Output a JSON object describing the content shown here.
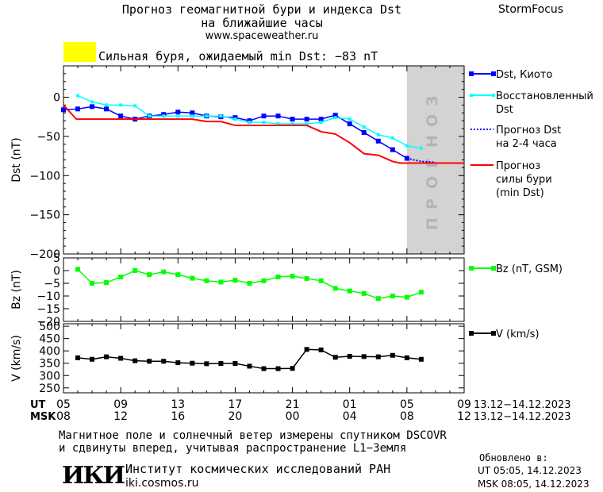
{
  "header": {
    "title_line1": "Прогноз геомагнитной бури и индекса Dst",
    "title_line2": "на ближайшие часы",
    "url": "www.spaceweather.ru",
    "brand": "StormFocus"
  },
  "storm_banner": {
    "text": "Сильная буря, ожидаемый min Dst: −83 nT",
    "color": "#ffff00"
  },
  "forecast_zone_label": "ПРОГНОЗ",
  "colors": {
    "dst_kyoto": "#0000ff",
    "dst_restored": "#00ffff",
    "dst_forecast": "#0000ff",
    "storm_forecast": "#ff0000",
    "bz": "#00ff00",
    "v": "#000000",
    "forecast_zone": "#d3d3d3"
  },
  "chart_data": [
    {
      "type": "line",
      "ylabel": "Dst (nT)",
      "ylim": [
        -200,
        40
      ],
      "yticks": [
        0,
        -50,
        -100,
        -150,
        -200
      ],
      "xlim": [
        5,
        33
      ],
      "series": [
        {
          "name": "Dst, Киото",
          "x": [
            5,
            6,
            7,
            8,
            9,
            10,
            11,
            12,
            13,
            14,
            15,
            16,
            17,
            18,
            19,
            20,
            21,
            22,
            23,
            24,
            25,
            26,
            27,
            28,
            29
          ],
          "values": [
            -16,
            -15,
            -12,
            -15,
            -24,
            -28,
            -24,
            -22,
            -19,
            -20,
            -24,
            -25,
            -26,
            -30,
            -24,
            -24,
            -28,
            -28,
            -28,
            -23,
            -34,
            -45,
            -56,
            -67,
            -78
          ]
        },
        {
          "name": "Восстановленный Dst",
          "x": [
            6,
            7,
            8,
            9,
            10,
            11,
            12,
            13,
            14,
            15,
            16,
            17,
            18,
            19,
            20,
            21,
            22,
            23,
            24,
            25,
            26,
            27,
            28,
            29,
            30
          ],
          "values": [
            2,
            -6,
            -10,
            -10,
            -11,
            -24,
            -24,
            -24,
            -24,
            -24,
            -24,
            -28,
            -32,
            -32,
            -34,
            -34,
            -34,
            -32,
            -26,
            -28,
            -38,
            -48,
            -52,
            -62,
            -65
          ]
        },
        {
          "name": "Прогноз Dst на 2-4 часа",
          "x": [
            29,
            30,
            31
          ],
          "values": [
            -78,
            -82,
            -83
          ]
        },
        {
          "name": "Прогноз силы бури (min Dst)",
          "x": [
            5,
            5.9,
            7,
            8,
            9,
            10,
            11,
            12,
            13,
            14,
            15,
            16,
            17,
            18,
            19,
            20,
            21,
            22,
            23,
            24,
            25,
            26,
            27,
            28,
            28.5,
            29,
            30,
            31,
            32,
            33
          ],
          "values": [
            -10,
            -28,
            -28,
            -28,
            -28,
            -28,
            -28,
            -28,
            -28,
            -28,
            -31,
            -31,
            -36,
            -36,
            -36,
            -36,
            -36,
            -36,
            -44,
            -47,
            -58,
            -72,
            -74,
            -82,
            -84,
            -84,
            -84,
            -84,
            -84,
            -84
          ]
        }
      ]
    },
    {
      "type": "line",
      "ylabel": "Bz (nT)",
      "ylim": [
        -20,
        5
      ],
      "yticks": [
        5,
        0,
        -5,
        -10,
        -15,
        -20
      ],
      "xlim": [
        5,
        33
      ],
      "series": [
        {
          "name": "Bz (nT, GSM)",
          "x": [
            6,
            7,
            8,
            9,
            10,
            11,
            12,
            13,
            14,
            15,
            16,
            17,
            18,
            19,
            20,
            21,
            22,
            23,
            24,
            25,
            26,
            27,
            28,
            29,
            30
          ],
          "values": [
            0.5,
            -5,
            -4.7,
            -2.5,
            0,
            -1.6,
            -0.5,
            -1.6,
            -3,
            -4,
            -4.5,
            -3.8,
            -5,
            -4,
            -2.5,
            -2.2,
            -3.1,
            -4,
            -7,
            -8,
            -9,
            -11,
            -10,
            -10.5,
            -8.5
          ]
        }
      ]
    },
    {
      "type": "line",
      "ylabel": "V (km/s)",
      "ylim": [
        230,
        510
      ],
      "yticks": [
        500,
        450,
        400,
        350,
        300,
        250
      ],
      "xlim": [
        5,
        33
      ],
      "series": [
        {
          "name": "V (km/s)",
          "x": [
            6,
            7,
            8,
            9,
            10,
            11,
            12,
            13,
            14,
            15,
            16,
            17,
            18,
            19,
            20,
            21,
            22,
            23,
            24,
            25,
            26,
            27,
            28,
            29,
            30
          ],
          "values": [
            372,
            366,
            376,
            370,
            360,
            358,
            358,
            352,
            350,
            348,
            349,
            349,
            338,
            328,
            328,
            329,
            406,
            404,
            374,
            378,
            377,
            376,
            382,
            372,
            366
          ]
        }
      ]
    }
  ],
  "time_axis": {
    "ut_label": "UT",
    "msk_label": "MSK",
    "ut_ticks": [
      "05",
      "09",
      "13",
      "17",
      "21",
      "01",
      "05",
      "09"
    ],
    "msk_ticks": [
      "08",
      "12",
      "16",
      "20",
      "00",
      "04",
      "08",
      "12"
    ],
    "ut_range": "13.12−14.12.2023",
    "msk_range": "13.12−14.12.2023"
  },
  "legend": {
    "dst_kyoto": "Dst, Киото",
    "restored_1": "Восстановленный",
    "restored_2": "Dst",
    "forecast_1": "Прогноз Dst",
    "forecast_2": "на 2-4 часа",
    "storm_1": "Прогноз",
    "storm_2": "силы бури",
    "storm_3": "(min Dst)",
    "bz": "Bz (nT, GSM)",
    "v": "V (km/s)"
  },
  "footer": {
    "note_line1": "Магнитное поле и солнечный ветер измерены спутником DSCOVR",
    "note_line2": "и сдвинуты вперед, учитывая распространение L1−Земля",
    "logo_text": "ИКИ",
    "institute": "Институт космических исследований РАН",
    "site": "iki.cosmos.ru",
    "updated_label": "Обновлено в:",
    "updated_ut": "UT  05:05, 14.12.2023",
    "updated_msk": "MSK 08:05, 14.12.2023"
  }
}
